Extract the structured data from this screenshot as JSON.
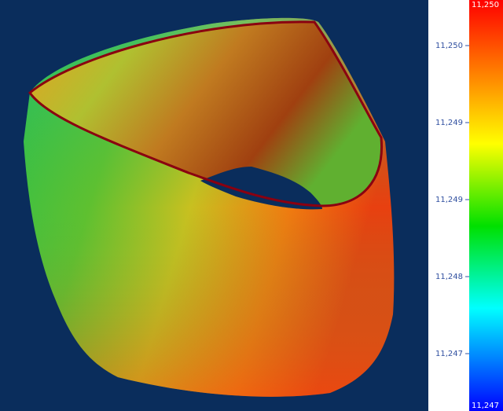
{
  "colorbar": {
    "max_label": "11,250",
    "min_label": "11,247",
    "ticks": [
      "11,250",
      "11,249",
      "11,249",
      "11,248",
      "11,247"
    ]
  }
}
